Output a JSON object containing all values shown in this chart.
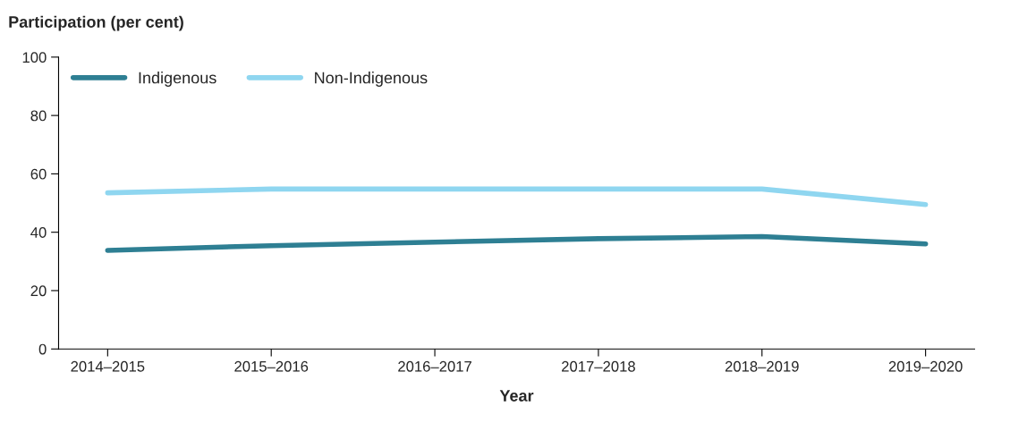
{
  "chart_data": {
    "type": "line",
    "ylabel": "Participation (per cent)",
    "xlabel": "Year",
    "categories": [
      "2014–2015",
      "2015–2016",
      "2016–2017",
      "2017–2018",
      "2018–2019",
      "2019–2020"
    ],
    "series": [
      {
        "name": "Indigenous",
        "color": "#2e7f93",
        "values": [
          33.8,
          35.4,
          36.6,
          37.8,
          38.5,
          36.0
        ]
      },
      {
        "name": "Non-Indigenous",
        "color": "#8fd6f0",
        "values": [
          53.5,
          54.8,
          54.8,
          54.8,
          54.8,
          49.5
        ]
      }
    ],
    "ylim": [
      0,
      100
    ],
    "yticks": [
      0,
      20,
      40,
      60,
      80,
      100
    ],
    "grid": false,
    "legend": "top left",
    "marker": "none",
    "line_style": "solid"
  }
}
